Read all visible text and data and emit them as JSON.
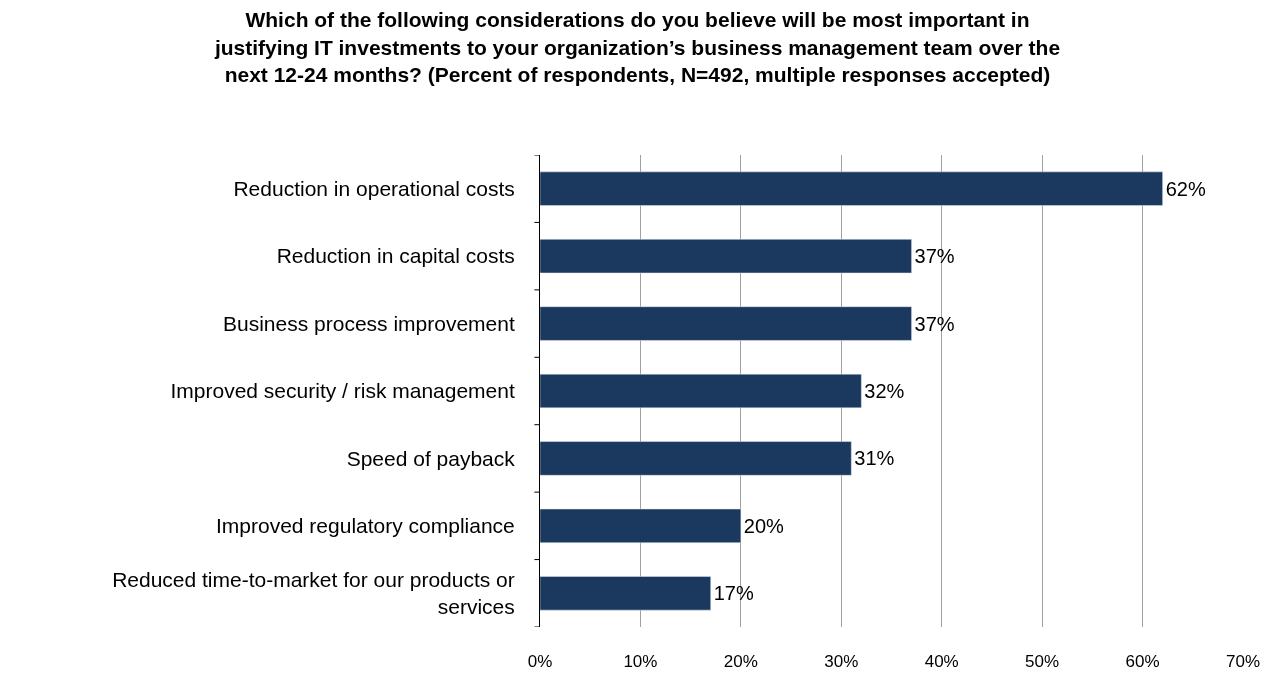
{
  "chart_data": {
    "type": "bar",
    "orientation": "horizontal",
    "title": "Which of the following considerations do you believe will be most important in justifying IT investments to your organization’s business management team over the next 12-24 months? (Percent of respondents, N=492, multiple responses accepted)",
    "categories": [
      "Reduction in operational costs",
      "Reduction in capital costs",
      "Business process improvement",
      "Improved security / risk management",
      "Speed of payback",
      "Improved regulatory compliance",
      "Reduced time-to-market for our products or services"
    ],
    "values": [
      62,
      37,
      37,
      32,
      31,
      20,
      17
    ],
    "value_labels": [
      "62%",
      "37%",
      "37%",
      "32%",
      "31%",
      "20%",
      "17%"
    ],
    "color": "#1b385e",
    "xlim": [
      0,
      70
    ],
    "xticks": [
      {
        "value": 0,
        "label": "0%"
      },
      {
        "value": 10,
        "label": "10%"
      },
      {
        "value": 20,
        "label": "20%"
      },
      {
        "value": 30,
        "label": "30%"
      },
      {
        "value": 40,
        "label": "40%"
      },
      {
        "value": 50,
        "label": "50%"
      },
      {
        "value": 60,
        "label": "60%"
      },
      {
        "value": 70,
        "label": "70%"
      }
    ],
    "grid": "x"
  }
}
